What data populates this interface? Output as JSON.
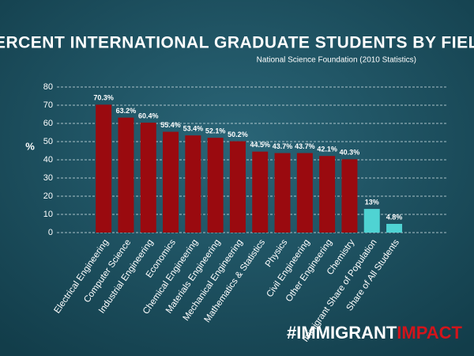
{
  "chart_data": {
    "type": "bar",
    "title": "PERCENT INTERNATIONAL GRADUATE STUDENTS BY FIELD",
    "subtitle": "National Science Foundation (2010 Statistics)",
    "ylabel": "%",
    "categories": [
      "Electrical Engineering",
      "Computer Science",
      "Industrial Engineering",
      "Economics",
      "Chemical Engineering",
      "Materials Engineering",
      "Mechanical Engineering",
      "Mathematics & Statistics",
      "Physics",
      "Civil Engineering",
      "Other Engineering",
      "Chemistry",
      "Immigrant Share of Population",
      "Share of All Students"
    ],
    "values": [
      70.3,
      63.2,
      60.4,
      55.4,
      53.4,
      52.1,
      50.2,
      44.5,
      43.7,
      43.7,
      42.1,
      40.3,
      13,
      4.8
    ],
    "value_labels": [
      "70.3%",
      "63.2%",
      "60.4%",
      "55.4%",
      "53.4%",
      "52.1%",
      "50.2%",
      "44.5%",
      "43.7%",
      "43.7%",
      "42.1%",
      "40.3%",
      "13%",
      "4.8%"
    ],
    "colors": [
      "#9a0a0f",
      "#9a0a0f",
      "#9a0a0f",
      "#9a0a0f",
      "#9a0a0f",
      "#9a0a0f",
      "#9a0a0f",
      "#9a0a0f",
      "#9a0a0f",
      "#9a0a0f",
      "#9a0a0f",
      "#9a0a0f",
      "#4fd3d3",
      "#4fd3d3"
    ],
    "ylim": [
      0,
      80
    ],
    "yticks": [
      0,
      10,
      20,
      30,
      40,
      50,
      60,
      70,
      80
    ],
    "grid": true,
    "branding": [
      "#IMMIGRANT",
      "IMPACT"
    ]
  }
}
